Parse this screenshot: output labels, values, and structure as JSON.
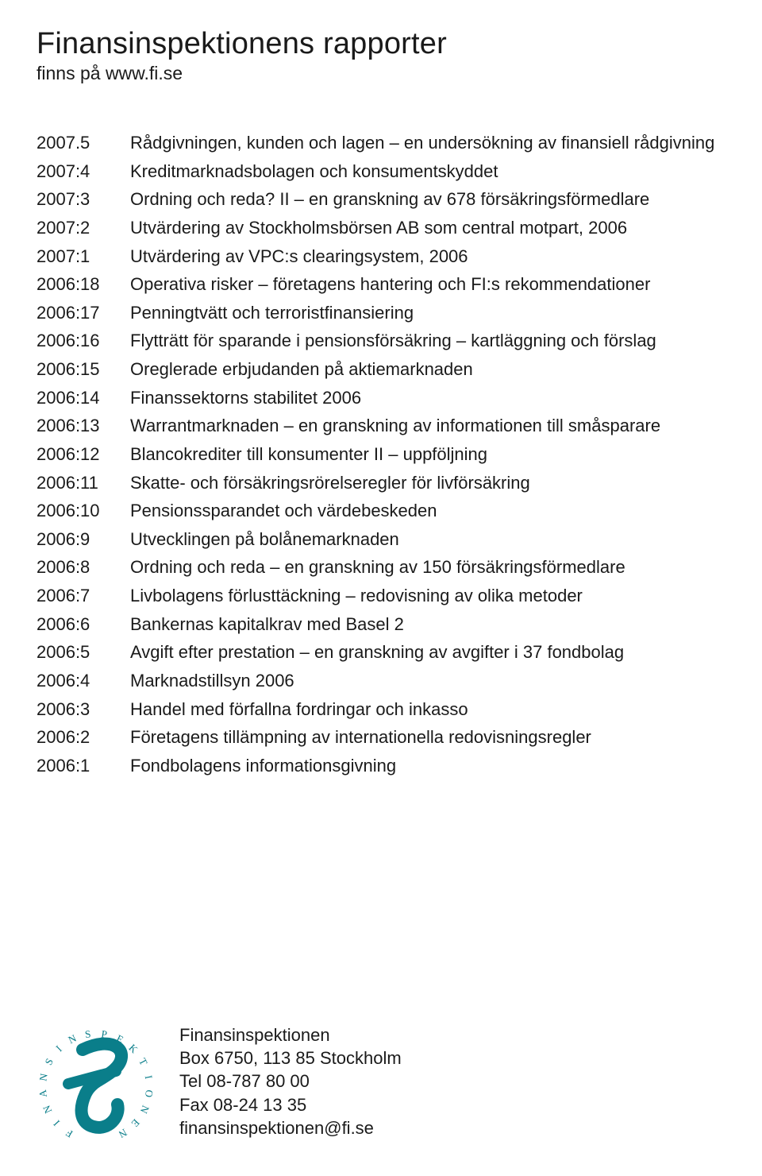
{
  "page": {
    "title": "Finansinspektionens rapporter",
    "subtitle": "finns på www.fi.se"
  },
  "reports": [
    {
      "code": "2007.5",
      "desc": "Rådgivningen, kunden och lagen – en undersökning av finansiell rådgivning"
    },
    {
      "code": "2007:4",
      "desc": "Kreditmarknadsbolagen och konsumentskyddet"
    },
    {
      "code": "2007:3",
      "desc": "Ordning och reda? II – en granskning av 678 försäkringsförmedlare"
    },
    {
      "code": "2007:2",
      "desc": "Utvärdering av Stockholmsbörsen AB som central motpart, 2006"
    },
    {
      "code": "2007:1",
      "desc": "Utvärdering av VPC:s clearingsystem, 2006"
    },
    {
      "code": "2006:18",
      "desc": "Operativa risker – företagens hantering och FI:s rekommendationer"
    },
    {
      "code": "2006:17",
      "desc": "Penningtvätt och terroristfinansiering"
    },
    {
      "code": "2006:16",
      "desc": "Flytträtt för sparande i pensionsförsäkring – kartläggning och förslag"
    },
    {
      "code": "2006:15",
      "desc": "Oreglerade erbjudanden på aktiemarknaden"
    },
    {
      "code": "2006:14",
      "desc": "Finanssektorns stabilitet 2006"
    },
    {
      "code": "2006:13",
      "desc": "Warrantmarknaden – en granskning av informationen till småsparare"
    },
    {
      "code": "2006:12",
      "desc": "Blancokrediter till konsumenter II –  uppföljning"
    },
    {
      "code": "2006:11",
      "desc": "Skatte- och försäkringsrörelseregler för livförsäkring"
    },
    {
      "code": "2006:10",
      "desc": "Pensionssparandet och värdebeskeden"
    },
    {
      "code": "2006:9",
      "desc": "Utvecklingen på bolånemarknaden"
    },
    {
      "code": "2006:8",
      "desc": "Ordning och reda – en granskning av 150 försäkringsförmedlare"
    },
    {
      "code": "2006:7",
      "desc": "Livbolagens förlusttäckning – redovisning av olika metoder"
    },
    {
      "code": "2006:6",
      "desc": "Bankernas kapitalkrav med Basel 2"
    },
    {
      "code": "2006:5",
      "desc": "Avgift efter prestation – en granskning av avgifter i 37 fondbolag"
    },
    {
      "code": "2006:4",
      "desc": "Marknadstillsyn 2006"
    },
    {
      "code": "2006:3",
      "desc": "Handel med förfallna fordringar och inkasso"
    },
    {
      "code": "2006:2",
      "desc": "Företagens tillämpning av internationella redovisningsregler"
    },
    {
      "code": "2006:1",
      "desc": "Fondbolagens informationsgivning"
    }
  ],
  "contact": {
    "name": "Finansinspektionen",
    "address": "Box 6750, 113 85 Stockholm",
    "tel": "Tel 08-787 80 00",
    "fax": "Fax 08-24 13 35",
    "email": "finansinspektionen@fi.se"
  },
  "logo": {
    "stroke_color": "#0a7e8a",
    "letters": [
      "F",
      "I",
      "N",
      "A",
      "N",
      "S",
      "I",
      "N",
      "S",
      "P",
      "E",
      "K",
      "T",
      "I",
      "O",
      "N",
      "E",
      "N"
    ]
  },
  "colors": {
    "text": "#1a1a1a",
    "background": "#ffffff"
  },
  "fonts": {
    "title_size_pt": 29,
    "subtitle_size_pt": 17,
    "body_size_pt": 17
  }
}
